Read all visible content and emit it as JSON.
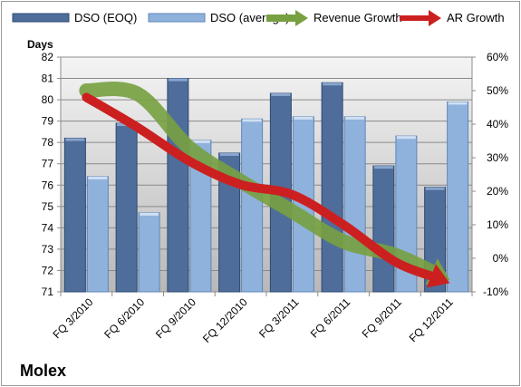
{
  "company": "Molex",
  "chart_data": {
    "type": "bar",
    "categories": [
      "FQ 3/2010",
      "FQ 6/2010",
      "FQ 9/2010",
      "FQ 12/2010",
      "FQ 3/2011",
      "FQ 6/2011",
      "FQ 9/2011",
      "FQ 12/2011"
    ],
    "series": [
      {
        "name": "DSO (EOQ)",
        "type": "bar",
        "axis": "left",
        "color": "#4f6d9a",
        "values": [
          78.2,
          78.9,
          81.0,
          77.5,
          80.3,
          80.8,
          76.9,
          75.9
        ]
      },
      {
        "name": "DSO (average)",
        "type": "bar",
        "axis": "left",
        "color": "#8fb2dc",
        "values": [
          76.4,
          74.7,
          78.1,
          79.1,
          79.2,
          79.2,
          78.3,
          79.9
        ]
      },
      {
        "name": "Revenue Growth",
        "type": "arrow",
        "axis": "right",
        "color": "#77a040",
        "values": [
          50,
          49,
          33,
          23,
          14,
          5,
          1,
          -6
        ]
      },
      {
        "name": "AR Growth",
        "type": "arrow",
        "axis": "right",
        "color": "#cc2020",
        "values": [
          48,
          39,
          29,
          22,
          19,
          10,
          -1,
          -7
        ]
      }
    ],
    "ylabel": "Days",
    "ylim": [
      71,
      82
    ],
    "yticks": [
      "71",
      "72",
      "73",
      "74",
      "75",
      "76",
      "77",
      "78",
      "79",
      "80",
      "81",
      "82"
    ],
    "y2lim": [
      -10,
      60
    ],
    "y2ticks": [
      "-10%",
      "0%",
      "10%",
      "20%",
      "30%",
      "40%",
      "50%",
      "60%"
    ],
    "grid": true,
    "legend": "top"
  }
}
